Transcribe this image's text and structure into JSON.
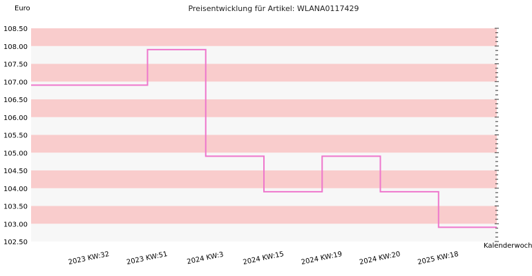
{
  "chart_data": {
    "type": "line",
    "step": true,
    "title": "Preisentwicklung für Artikel: WLANA0117429",
    "ylabel": "Euro",
    "xlabel": "Kalenderwoche",
    "categories": [
      "2023 KW:32",
      "2023 KW:51",
      "2024 KW:3",
      "2024 KW:15",
      "2024 KW:19",
      "2024 KW:20",
      "2025 KW:18"
    ],
    "values": [
      106.9,
      107.9,
      104.9,
      103.9,
      104.9,
      103.9,
      102.9
    ],
    "ylim": [
      102.5,
      108.5
    ],
    "yticks": [
      "102.50",
      "103.00",
      "103.50",
      "104.00",
      "104.50",
      "105.00",
      "105.50",
      "106.00",
      "106.50",
      "107.00",
      "107.50",
      "108.00",
      "108.50"
    ],
    "band_colors": [
      "#f7f7f7",
      "#f9cccc"
    ],
    "line_color": "#ee77cc",
    "grid": true
  }
}
